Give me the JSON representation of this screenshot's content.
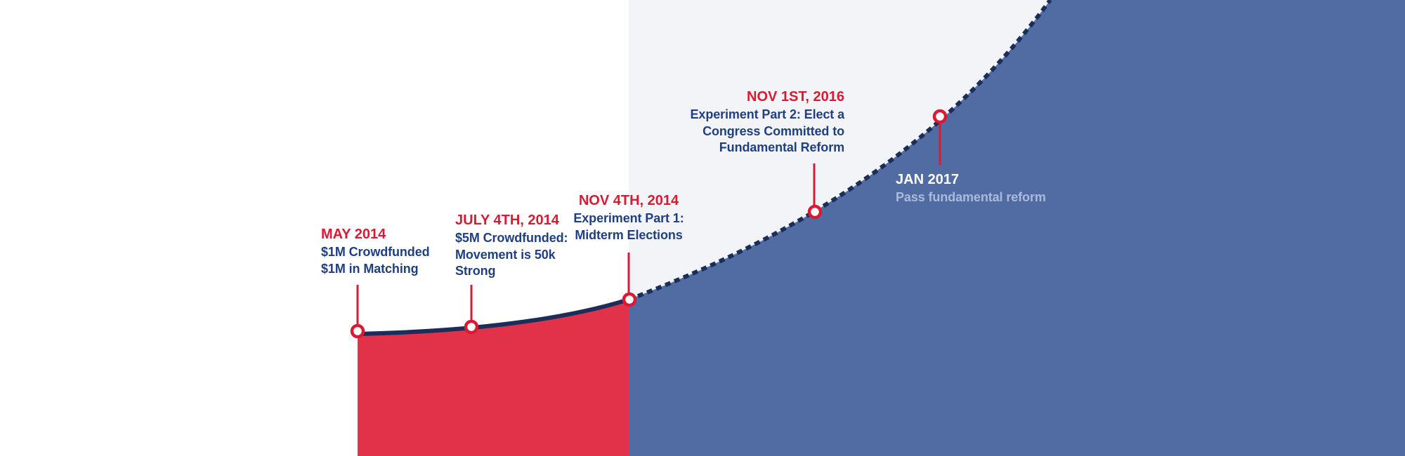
{
  "colors": {
    "background": "#ffffff",
    "future_background": "#f3f4f8",
    "past_fill": "#e1324a",
    "future_fill": "#516ca3",
    "curve": "#1b2d59",
    "accent_red": "#d91a33",
    "navy_text": "#1f3f83",
    "white_text": "#ffffff",
    "light_blue_text": "#aabbdb",
    "marker_fill": "#ffffff"
  },
  "milestones": [
    {
      "date": "MAY 2014",
      "lines": [
        "$1M Crowdfunded",
        "$1M in Matching"
      ],
      "date_color": "#d91a33",
      "text_color": "#1f3f83"
    },
    {
      "date": "JULY 4TH, 2014",
      "lines": [
        "$5M Crowdfunded:",
        "Movement is 50k",
        "Strong"
      ],
      "date_color": "#d91a33",
      "text_color": "#1f3f83"
    },
    {
      "date": "NOV 4TH, 2014",
      "lines": [
        "Experiment Part 1:",
        "Midterm Elections"
      ],
      "date_color": "#d91a33",
      "text_color": "#1f3f83"
    },
    {
      "date": "NOV 1ST, 2016",
      "lines": [
        "Experiment Part 2: Elect a",
        "Congress Committed to",
        "Fundamental Reform"
      ],
      "date_color": "#d91a33",
      "text_color": "#1f3f83"
    },
    {
      "date": "JAN 2017",
      "lines": [
        "Pass fundamental reform"
      ],
      "date_color": "#ffffff",
      "text_color": "#aabbdb"
    }
  ]
}
